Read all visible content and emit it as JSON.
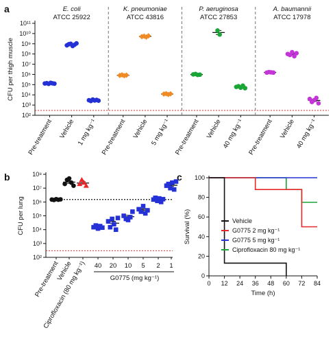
{
  "chart_data": [
    {
      "panel": "a",
      "type": "scatter",
      "ylabel": "CFU per thigh muscle",
      "y_scale": "log",
      "ylim": [
        100,
        100000000000
      ],
      "y_ticks": [
        "10²",
        "10³",
        "10⁴",
        "10⁵",
        "10⁶",
        "10⁷",
        "10⁸",
        "10⁹",
        "10¹⁰",
        "10¹¹"
      ],
      "limit_of_detection": 300,
      "limit_line_color": "#e8272b",
      "groups": [
        {
          "organism": "E. coli",
          "strain": "ATCC 25922",
          "color": "#2431d6",
          "marker": "circle",
          "categories": [
            "Pre-treatment",
            "Vehicle",
            "1 mg kg⁻¹"
          ],
          "points": [
            [
              130000,
              140000,
              120000,
              150000,
              135000,
              125000
            ],
            [
              700000000,
              900000000,
              1000000000,
              600000000,
              800000000,
              1100000000
            ],
            [
              3000,
              2500,
              3500,
              2800,
              3200,
              2700
            ]
          ]
        },
        {
          "organism": "K. pneumoniae",
          "strain": "ATCC 43816",
          "color": "#f08a24",
          "marker": "diamond",
          "categories": [
            "Pre-treatment",
            "Vehicle",
            "5 mg kg⁻¹"
          ],
          "points": [
            [
              800000,
              900000,
              750000,
              850000
            ],
            [
              5000000000,
              5500000000,
              4500000000,
              6000000000
            ],
            [
              12000,
              13000,
              11000,
              12500
            ]
          ]
        },
        {
          "organism": "P. aeruginosa",
          "strain": "ATCC 27853",
          "color": "#1aa637",
          "marker": "circle",
          "categories": [
            "Pre-treatment",
            "Vehicle",
            "40 mg kg⁻¹"
          ],
          "points": [
            [
              1000000,
              1100000,
              900000,
              950000
            ],
            [
              20000000000,
              8000000000
            ],
            [
              60000,
              70000,
              50000,
              80000,
              45000
            ]
          ]
        },
        {
          "organism": "A. baumannii",
          "strain": "ATCC 17978",
          "color": "#c435d8",
          "marker": "circle",
          "categories": [
            "Pre-treatment",
            "Vehicle",
            "40 mg kg⁻¹"
          ],
          "points": [
            [
              1500000,
              1700000,
              1600000,
              1500000
            ],
            [
              100000000,
              80000000,
              150000000,
              60000000,
              120000000
            ],
            [
              4000,
              2000,
              3000,
              5000,
              1500
            ]
          ]
        }
      ]
    },
    {
      "panel": "b",
      "type": "scatter",
      "ylabel": "CFU per lung",
      "xlabel": "G0775 (mg kg⁻¹)",
      "y_scale": "log",
      "ylim": [
        100,
        100000000
      ],
      "y_ticks": [
        "10²",
        "10³",
        "10⁴",
        "10⁵",
        "10⁶",
        "10⁷",
        "10⁸"
      ],
      "baseline_value": 1500000,
      "limit_of_detection": 300,
      "groups": [
        {
          "label": "Pre-treatment",
          "color": "#111111",
          "marker": "circle",
          "points": [
            1500000,
            1400000,
            1600000,
            1450000,
            1550000
          ]
        },
        {
          "label": "Vehicle",
          "color": "#111111",
          "marker": "circle",
          "points": [
            20000000,
            40000000,
            50000000,
            25000000,
            15000000
          ]
        },
        {
          "label": "Ciprofloxacin (80 mg kg⁻¹)",
          "color": "#e8272b",
          "marker": "triangle",
          "points": [
            20000000,
            40000000,
            25000000,
            15000000
          ]
        },
        {
          "label": "40",
          "color": "#2431d6",
          "marker": "square",
          "points": [
            15000,
            20000,
            12000,
            18000,
            14000
          ]
        },
        {
          "label": "20",
          "color": "#2431d6",
          "marker": "square",
          "points": [
            40000,
            15000,
            60000,
            25000,
            10000,
            70000
          ]
        },
        {
          "label": "10",
          "color": "#2431d6",
          "marker": "square",
          "points": [
            100000,
            60000,
            50000,
            80000,
            200000
          ]
        },
        {
          "label": "5",
          "color": "#2431d6",
          "marker": "square",
          "points": [
            300000,
            200000,
            500000,
            150000,
            250000
          ]
        },
        {
          "label": "2",
          "color": "#2431d6",
          "marker": "square",
          "points": [
            1500000,
            2000000,
            1200000,
            1800000,
            1000000,
            1600000
          ]
        },
        {
          "label": "1",
          "color": "#2431d6",
          "marker": "square",
          "points": [
            15000000,
            20000000,
            10000000,
            25000000,
            8000000,
            30000000
          ]
        }
      ]
    },
    {
      "panel": "c",
      "type": "line",
      "step": true,
      "xlabel": "Time (h)",
      "ylabel": "Survival (%)",
      "xlim": [
        0,
        84
      ],
      "ylim": [
        0,
        100
      ],
      "x_ticks": [
        0,
        12,
        24,
        36,
        48,
        60,
        72,
        84
      ],
      "y_ticks": [
        0,
        20,
        40,
        60,
        80,
        100
      ],
      "legend_position": "inside-left",
      "series": [
        {
          "name": "Vehicle",
          "color": "#111111",
          "x": [
            0,
            12,
            12,
            60,
            60
          ],
          "y": [
            100,
            100,
            13,
            13,
            0
          ]
        },
        {
          "name": "G0775 2 mg kg⁻¹",
          "color": "#e8272b",
          "x": [
            0,
            36,
            36,
            72,
            72,
            84
          ],
          "y": [
            100,
            100,
            88,
            88,
            50,
            50
          ]
        },
        {
          "name": "G0775 5 mg kg⁻¹",
          "color": "#2431d6",
          "x": [
            0,
            84
          ],
          "y": [
            100,
            100
          ]
        },
        {
          "name": "Ciprofloxacin 80 mg kg⁻¹",
          "color": "#1aa637",
          "x": [
            0,
            60,
            60,
            72,
            72,
            84
          ],
          "y": [
            100,
            100,
            88,
            88,
            75,
            75
          ]
        }
      ]
    }
  ],
  "labels": {
    "panel_a": "a",
    "panel_b": "b",
    "panel_c": "c"
  }
}
